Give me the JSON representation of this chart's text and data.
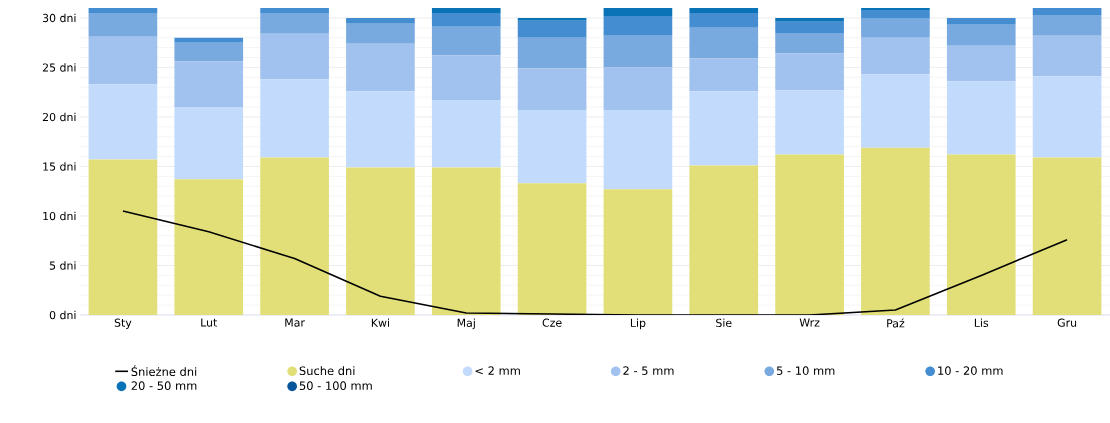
{
  "chart_data": {
    "type": "bar",
    "stacked": true,
    "categories": [
      "Sty",
      "Lut",
      "Mar",
      "Kwi",
      "Maj",
      "Cze",
      "Lip",
      "Sie",
      "Wrz",
      "Paź",
      "Lis",
      "Gru"
    ],
    "series": [
      {
        "name": "Śnieżne dni",
        "type": "line",
        "color": "#000000",
        "marker": "none",
        "line_style": "solid",
        "values": [
          10.5,
          8.4,
          5.7,
          1.9,
          0.2,
          0.1,
          0,
          0,
          0,
          0.5,
          4.0,
          7.6
        ]
      },
      {
        "name": "Suche dni",
        "color": "#e3df78",
        "values": [
          15.7,
          13.7,
          15.9,
          14.9,
          14.9,
          13.3,
          12.7,
          15.1,
          16.2,
          16.9,
          16.2,
          15.9
        ]
      },
      {
        "name": "< 2 mm",
        "color": "#c2dafc",
        "values": [
          7.6,
          7.3,
          7.9,
          7.7,
          6.8,
          7.4,
          8.0,
          7.5,
          6.5,
          7.4,
          7.4,
          8.2
        ]
      },
      {
        "name": "2 - 5 mm",
        "color": "#a1c2ee",
        "values": [
          4.8,
          4.6,
          4.6,
          4.8,
          4.5,
          4.2,
          4.3,
          3.3,
          3.7,
          3.7,
          3.6,
          4.1
        ]
      },
      {
        "name": "5 - 10 mm",
        "color": "#78aae0",
        "values": [
          2.4,
          1.9,
          2.1,
          2.0,
          2.9,
          3.1,
          3.2,
          3.1,
          2.0,
          2.0,
          2.1,
          2.1
        ]
      },
      {
        "name": "10 - 20 mm",
        "color": "#448dd0",
        "values": [
          0.5,
          0.5,
          0.5,
          0.6,
          1.4,
          1.7,
          2.0,
          1.5,
          1.2,
          0.8,
          0.7,
          0.7
        ]
      },
      {
        "name": "20 - 50 mm",
        "color": "#0a73b8",
        "values": [
          0,
          0,
          0,
          0,
          0.5,
          0.3,
          0.8,
          0.5,
          0.4,
          0.2,
          0,
          0
        ]
      },
      {
        "name": "50 - 100 mm",
        "color": "#07559a",
        "values": [
          0,
          0,
          0,
          0,
          0,
          0,
          0,
          0,
          0,
          0,
          0,
          0
        ]
      }
    ],
    "ylim": [
      0,
      31
    ],
    "yticks": [
      {
        "value": 0,
        "label": "0 dni"
      },
      {
        "value": 5,
        "label": "5 dni"
      },
      {
        "value": 10,
        "label": "10 dni"
      },
      {
        "value": 15,
        "label": "15 dni"
      },
      {
        "value": 20,
        "label": "20 dni"
      },
      {
        "value": 25,
        "label": "25 dni"
      },
      {
        "value": 30,
        "label": "30 dni"
      }
    ],
    "grid": "y",
    "legend": "bottom"
  }
}
